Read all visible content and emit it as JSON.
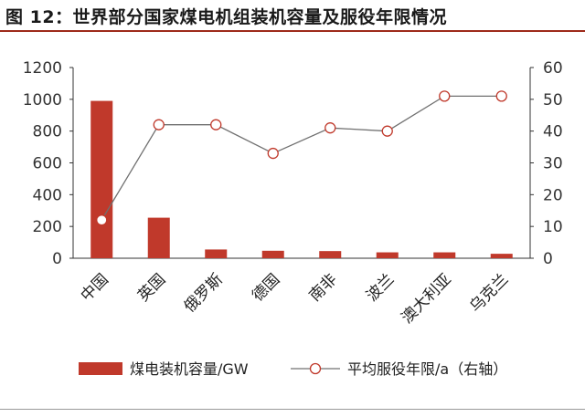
{
  "title": "图 12：世界部分国家煤电机组装机容量及服役年限情况",
  "chart_data": {
    "type": "bar+line",
    "categories": [
      "中国",
      "英国",
      "俄罗斯",
      "德国",
      "南非",
      "波兰",
      "澳大利亚",
      "乌克兰"
    ],
    "series": [
      {
        "name": "煤电装机容量/GW",
        "type": "bar",
        "axis": "left",
        "values": [
          990,
          255,
          55,
          47,
          45,
          37,
          37,
          28
        ]
      },
      {
        "name": "平均服役年限/a（右轴）",
        "type": "line",
        "axis": "right",
        "values": [
          12,
          42,
          42,
          33,
          41,
          40,
          51,
          51
        ]
      }
    ],
    "ylim_left": [
      0,
      1200
    ],
    "yticks_left": [
      0,
      200,
      400,
      600,
      800,
      1000,
      1200
    ],
    "ylim_right": [
      0,
      60
    ],
    "yticks_right": [
      0,
      10,
      20,
      30,
      40,
      50,
      60
    ],
    "legend_position": "bottom",
    "grid": false,
    "colors": {
      "bar": "#c0392b",
      "line": "#707070",
      "marker_edge": "#c0392b",
      "marker_fill": "#ffffff"
    }
  }
}
